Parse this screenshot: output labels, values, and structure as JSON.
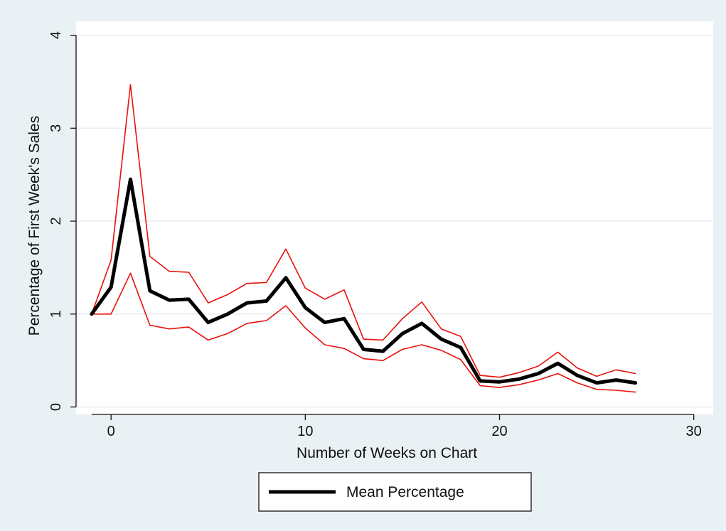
{
  "colors": {
    "background": "#eaf1f4",
    "plot_background": "#ffffff",
    "gridline": "#e6eef2",
    "mean_line": "#000000",
    "band_line": "#e8100a"
  },
  "chart_data": {
    "type": "line",
    "title": "",
    "xlabel": "Number of Weeks on Chart",
    "ylabel": "Percentage of First Week's Sales",
    "xlim": [
      -1.8,
      31
    ],
    "ylim": [
      -0.08,
      4.15
    ],
    "x_ticks": [
      0,
      10,
      20,
      30
    ],
    "y_ticks": [
      0,
      1,
      2,
      3,
      4
    ],
    "grid": true,
    "legend_position": "bottom-center",
    "x": [
      -1,
      0,
      1,
      2,
      3,
      4,
      5,
      6,
      7,
      8,
      9,
      10,
      11,
      12,
      13,
      14,
      15,
      16,
      17,
      18,
      19,
      20,
      21,
      22,
      23,
      24,
      25,
      26,
      27
    ],
    "series": [
      {
        "name": "Mean Percentage",
        "in_legend": true,
        "values": [
          1.0,
          1.29,
          2.45,
          1.25,
          1.15,
          1.16,
          0.91,
          1.0,
          1.12,
          1.14,
          1.39,
          1.07,
          0.91,
          0.95,
          0.62,
          0.6,
          0.79,
          0.9,
          0.73,
          0.64,
          0.28,
          0.27,
          0.3,
          0.36,
          0.47,
          0.34,
          0.26,
          0.29,
          0.26
        ]
      },
      {
        "in_legend": false,
        "values": [
          1.0,
          1.58,
          3.47,
          1.62,
          1.46,
          1.45,
          1.12,
          1.21,
          1.33,
          1.34,
          1.7,
          1.28,
          1.16,
          1.26,
          0.73,
          0.72,
          0.95,
          1.13,
          0.84,
          0.76,
          0.34,
          0.32,
          0.37,
          0.44,
          0.59,
          0.42,
          0.33,
          0.4,
          0.36
        ]
      },
      {
        "in_legend": false,
        "values": [
          1.0,
          1.0,
          1.44,
          0.88,
          0.84,
          0.86,
          0.72,
          0.79,
          0.9,
          0.93,
          1.09,
          0.85,
          0.67,
          0.63,
          0.52,
          0.5,
          0.62,
          0.67,
          0.61,
          0.51,
          0.23,
          0.21,
          0.24,
          0.29,
          0.36,
          0.26,
          0.19,
          0.18,
          0.16
        ]
      }
    ]
  }
}
